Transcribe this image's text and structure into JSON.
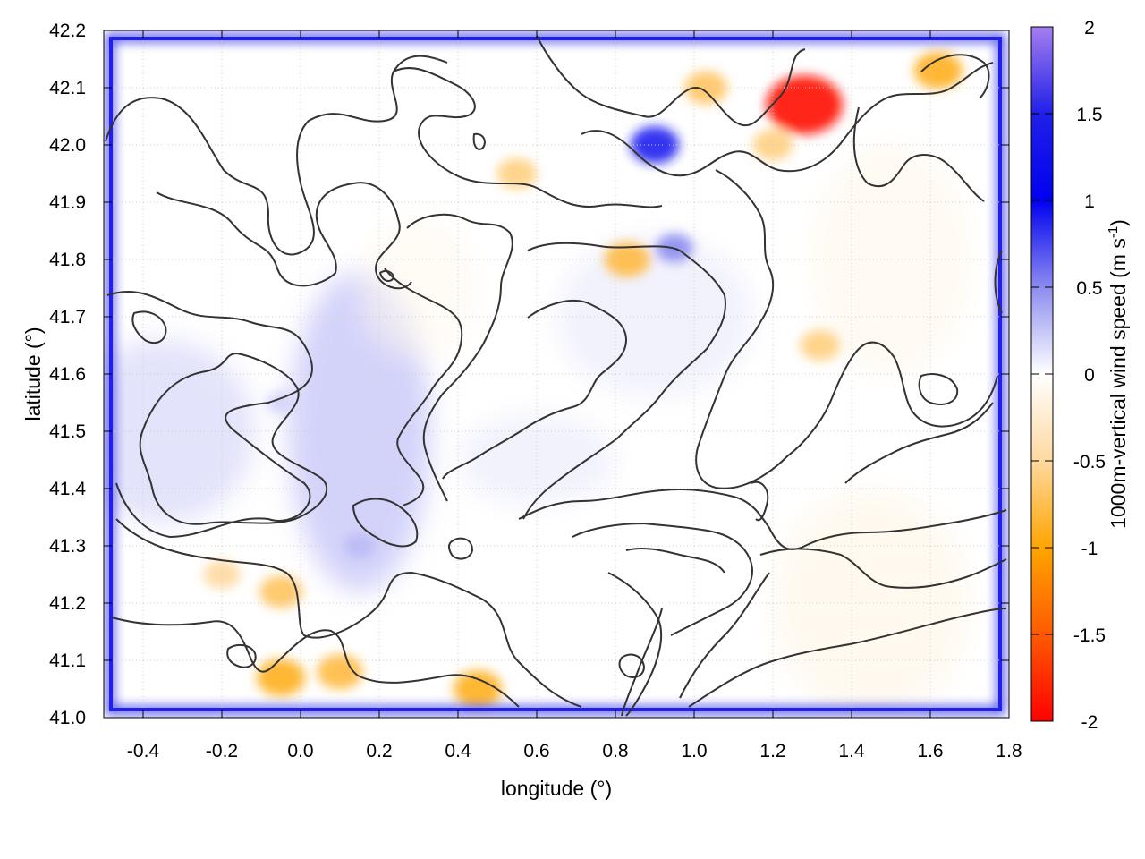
{
  "chart_data": {
    "type": "heatmap",
    "title": "",
    "xlabel": "longitude (°)",
    "ylabel": "latitude (°)",
    "xlim": [
      -0.5,
      1.8
    ],
    "ylim": [
      41.0,
      42.2
    ],
    "x_ticks": [
      -0.4,
      -0.2,
      0.0,
      0.2,
      0.4,
      0.6,
      0.8,
      1.0,
      1.2,
      1.4,
      1.6,
      1.8
    ],
    "x_tick_labels": [
      "-0.4",
      "-0.2",
      "0.0",
      "0.2",
      "0.4",
      "0.6",
      "0.8",
      "1.0",
      "1.2",
      "1.4",
      "1.6",
      "1.8"
    ],
    "y_ticks": [
      41.0,
      41.1,
      41.2,
      41.3,
      41.4,
      41.5,
      41.6,
      41.7,
      41.8,
      41.9,
      42.0,
      42.1,
      42.2
    ],
    "y_tick_labels": [
      "41.0",
      "41.1",
      "41.2",
      "41.3",
      "41.4",
      "41.5",
      "41.6",
      "41.7",
      "41.8",
      "41.9",
      "42.0",
      "42.1",
      "42.2"
    ],
    "grid": true,
    "colorbar": {
      "label": "1000m-vertical wind speed (m s",
      "label_superscript": "-1",
      "label_suffix": ")",
      "range": [
        -2,
        2
      ],
      "ticks": [
        2,
        1.5,
        1,
        0.5,
        0,
        -0.5,
        -1,
        -1.5,
        -2
      ],
      "tick_labels": [
        "2",
        "1.5",
        "1",
        "0.5",
        "0",
        "-0.5",
        "-1",
        "-1.5",
        "-2"
      ],
      "colormap": [
        {
          "value": 2.0,
          "color": "#a57ef0"
        },
        {
          "value": 1.5,
          "color": "#2020e8"
        },
        {
          "value": 1.0,
          "color": "#0000f0"
        },
        {
          "value": 0.5,
          "color": "#8c8cf0"
        },
        {
          "value": 0.0,
          "color": "#ffffff"
        },
        {
          "value": -0.5,
          "color": "#ffd9a0"
        },
        {
          "value": -1.0,
          "color": "#ffa500"
        },
        {
          "value": -1.5,
          "color": "#ff5a00"
        },
        {
          "value": -2.0,
          "color": "#ff0000"
        }
      ]
    },
    "features": {
      "boundary_updraft": 1.5,
      "negative_hotspots": [
        {
          "lon": 1.28,
          "lat": 42.07,
          "w": -1.9
        },
        {
          "lon": 1.62,
          "lat": 42.13,
          "w": -0.9
        },
        {
          "lon": 1.03,
          "lat": 42.1,
          "w": -0.7
        },
        {
          "lon": 0.83,
          "lat": 41.8,
          "w": -0.8
        },
        {
          "lon": 0.55,
          "lat": 41.95,
          "w": -0.6
        },
        {
          "lon": 0.45,
          "lat": 41.05,
          "w": -0.9
        },
        {
          "lon": 0.1,
          "lat": 41.08,
          "w": -0.8
        },
        {
          "lon": -0.05,
          "lat": 41.07,
          "w": -0.9
        },
        {
          "lon": -0.05,
          "lat": 41.22,
          "w": -0.7
        },
        {
          "lon": 1.32,
          "lat": 41.65,
          "w": -0.6
        },
        {
          "lon": -0.2,
          "lat": 41.25,
          "w": -0.5
        },
        {
          "lon": 1.2,
          "lat": 42.0,
          "w": -0.6
        }
      ],
      "positive_hotspots": [
        {
          "lon": 0.9,
          "lat": 42.0,
          "w": 0.9
        },
        {
          "lon": 0.95,
          "lat": 41.82,
          "w": 0.5
        },
        {
          "lon": 0.15,
          "lat": 41.3,
          "w": 0.3
        },
        {
          "lon": -0.05,
          "lat": 41.55,
          "w": 0.2
        }
      ]
    },
    "colors": {
      "contour": "#333333",
      "grid": "#cccccc",
      "frame": "#000000"
    }
  }
}
